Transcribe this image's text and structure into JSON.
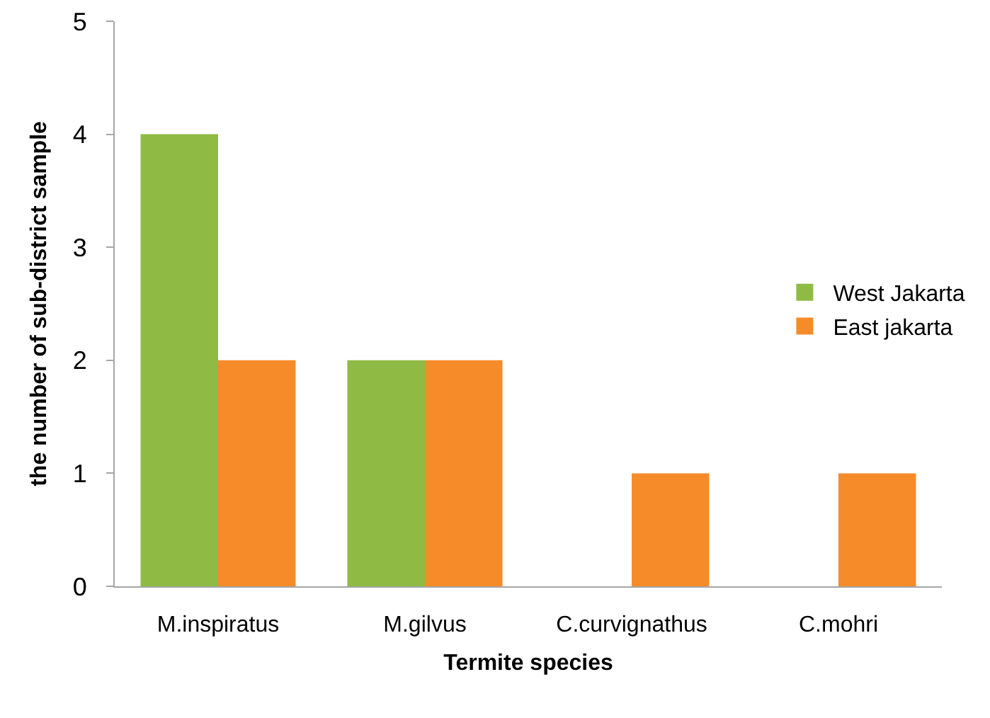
{
  "chart_data": {
    "type": "bar",
    "xlabel": "Termite species",
    "ylabel": "the number of sub-district sample",
    "categories": [
      "M.inspiratus",
      "M.gilvus",
      "C.curvignathus",
      "C.mohri"
    ],
    "series": [
      {
        "name": "West Jakarta",
        "color": "#8fbb44",
        "values": [
          4,
          2,
          0,
          0
        ]
      },
      {
        "name": "East jakarta",
        "color": "#f68b2a",
        "values": [
          2,
          2,
          1,
          1
        ]
      }
    ],
    "ylim": [
      0,
      5
    ],
    "yticks": [
      0,
      1,
      2,
      3,
      4,
      5
    ],
    "grid": false,
    "legend": "right"
  }
}
